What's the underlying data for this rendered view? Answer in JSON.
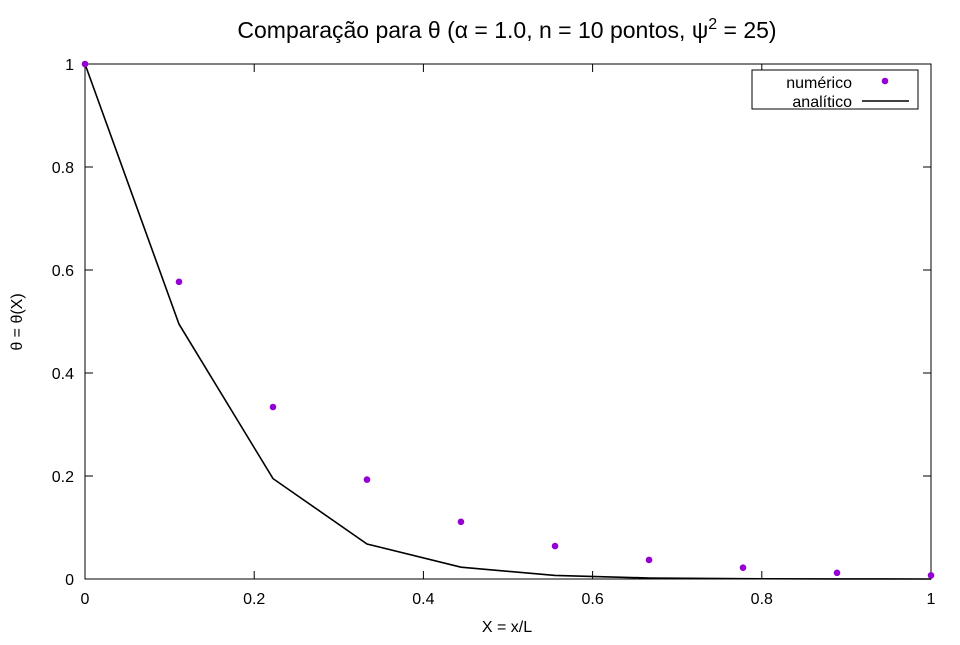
{
  "chart_data": {
    "type": "scatter",
    "title": "Comparação para θ (α = 1.0, n = 10 pontos, ψ",
    "title_sup": "2",
    "title_tail": " = 25)",
    "xlabel": "X = x/L",
    "ylabel": "θ = θ(X)",
    "xlim": [
      0,
      1
    ],
    "ylim": [
      0,
      1
    ],
    "xticks": [
      0,
      0.2,
      0.4,
      0.6,
      0.8,
      1
    ],
    "xtick_labels": [
      "0",
      "0.2",
      "0.4",
      "0.6",
      "0.8",
      "1"
    ],
    "yticks": [
      0,
      0.2,
      0.4,
      0.6,
      0.8,
      1
    ],
    "ytick_labels": [
      "0",
      "0.2",
      "0.4",
      "0.6",
      "0.8",
      "1"
    ],
    "grid": false,
    "legend_position": "top-right",
    "series": [
      {
        "name": "numérico",
        "kind": "points",
        "color": "#9400d3",
        "x": [
          0,
          0.1111,
          0.2222,
          0.3333,
          0.4444,
          0.5556,
          0.6667,
          0.7778,
          0.8889,
          1.0
        ],
        "y": [
          1.0,
          0.577,
          0.334,
          0.193,
          0.111,
          0.064,
          0.037,
          0.022,
          0.012,
          0.007
        ]
      },
      {
        "name": "analítico",
        "kind": "line",
        "color": "#000000",
        "x": [
          0,
          0.1111,
          0.2222,
          0.3333,
          0.4444,
          0.5556,
          0.6667,
          0.7778,
          0.8889,
          1.0
        ],
        "y": [
          1.0,
          0.495,
          0.195,
          0.068,
          0.023,
          0.007,
          0.002,
          0.0005,
          0.0001,
          0.0
        ]
      }
    ]
  }
}
